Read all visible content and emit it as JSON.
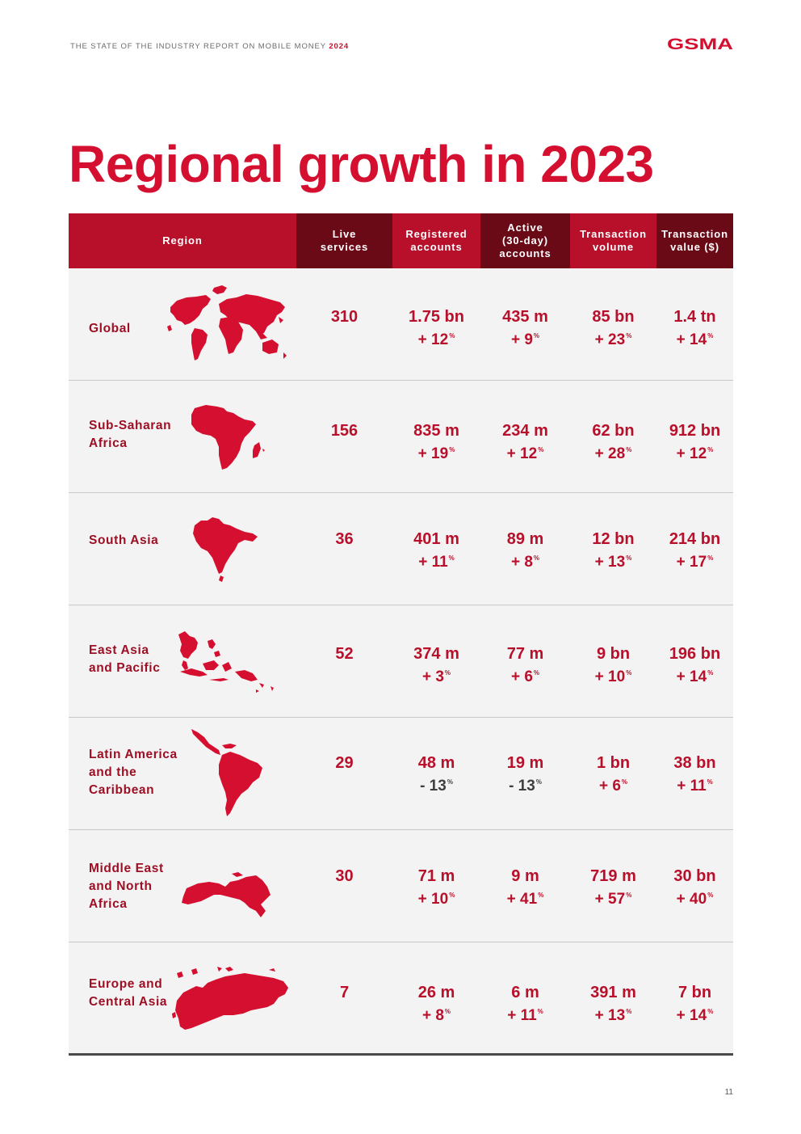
{
  "header": {
    "running_title": "THE STATE OF THE INDUSTRY REPORT ON MOBILE MONEY",
    "running_year": "2024",
    "logo_text": "GSMA",
    "accent_color": "#d50f2f",
    "dark_accent_color": "#6b0a17"
  },
  "title": "Regional growth in 2023",
  "table": {
    "headers": {
      "region": "Region",
      "live": "Live services",
      "registered": "Registered accounts",
      "active": "Active (30-day) accounts",
      "volume": "Transaction volume",
      "value": "Transaction value ($)"
    },
    "rows": [
      {
        "region": "Global",
        "map_icon": "world-map-icon",
        "live": "310",
        "registered": {
          "value": "1.75 bn",
          "change": "+ 12",
          "pct": "%"
        },
        "active": {
          "value": "435 m",
          "change": "+ 9",
          "pct": "%"
        },
        "volume": {
          "value": "85 bn",
          "change": "+ 23",
          "pct": "%"
        },
        "txvalue": {
          "value": "1.4 tn",
          "change": "+ 14",
          "pct": "%"
        }
      },
      {
        "region": "Sub-Saharan\nAfrica",
        "map_icon": "africa-map-icon",
        "live": "156",
        "registered": {
          "value": "835 m",
          "change": "+ 19",
          "pct": "%"
        },
        "active": {
          "value": "234 m",
          "change": "+ 12",
          "pct": "%"
        },
        "volume": {
          "value": "62 bn",
          "change": "+ 28",
          "pct": "%"
        },
        "txvalue": {
          "value": "912 bn",
          "change": "+ 12",
          "pct": "%"
        }
      },
      {
        "region": "South Asia",
        "map_icon": "south-asia-map-icon",
        "live": "36",
        "registered": {
          "value": "401 m",
          "change": "+ 11",
          "pct": "%"
        },
        "active": {
          "value": "89 m",
          "change": "+ 8",
          "pct": "%"
        },
        "volume": {
          "value": "12 bn",
          "change": "+ 13",
          "pct": "%"
        },
        "txvalue": {
          "value": "214 bn",
          "change": "+ 17",
          "pct": "%"
        }
      },
      {
        "region": "East Asia\nand Pacific",
        "map_icon": "east-asia-pacific-map-icon",
        "live": "52",
        "registered": {
          "value": "374 m",
          "change": "+ 3",
          "pct": "%"
        },
        "active": {
          "value": "77 m",
          "change": "+ 6",
          "pct": "%"
        },
        "volume": {
          "value": "9 bn",
          "change": "+ 10",
          "pct": "%"
        },
        "txvalue": {
          "value": "196 bn",
          "change": "+ 14",
          "pct": "%"
        }
      },
      {
        "region": "Latin America\nand the\nCaribbean",
        "map_icon": "latin-america-map-icon",
        "live": "29",
        "registered": {
          "value": "48 m",
          "change": "- 13",
          "pct": "%"
        },
        "active": {
          "value": "19 m",
          "change": "- 13",
          "pct": "%"
        },
        "volume": {
          "value": "1 bn",
          "change": "+ 6",
          "pct": "%"
        },
        "txvalue": {
          "value": "38 bn",
          "change": "+ 11",
          "pct": "%"
        }
      },
      {
        "region": "Middle East\nand North\nAfrica",
        "map_icon": "middle-east-north-africa-map-icon",
        "live": "30",
        "registered": {
          "value": "71 m",
          "change": "+ 10",
          "pct": "%"
        },
        "active": {
          "value": "9 m",
          "change": "+ 41",
          "pct": "%"
        },
        "volume": {
          "value": "719 m",
          "change": "+ 57",
          "pct": "%"
        },
        "txvalue": {
          "value": "30 bn",
          "change": "+ 40",
          "pct": "%"
        }
      },
      {
        "region": "Europe and\nCentral Asia",
        "map_icon": "europe-central-asia-map-icon",
        "live": "7",
        "registered": {
          "value": "26 m",
          "change": "+ 8",
          "pct": "%"
        },
        "active": {
          "value": "6 m",
          "change": "+ 11",
          "pct": "%"
        },
        "volume": {
          "value": "391 m",
          "change": "+ 13",
          "pct": "%"
        },
        "txvalue": {
          "value": "7 bn",
          "change": "+ 14",
          "pct": "%"
        }
      }
    ]
  },
  "page_number": "11"
}
